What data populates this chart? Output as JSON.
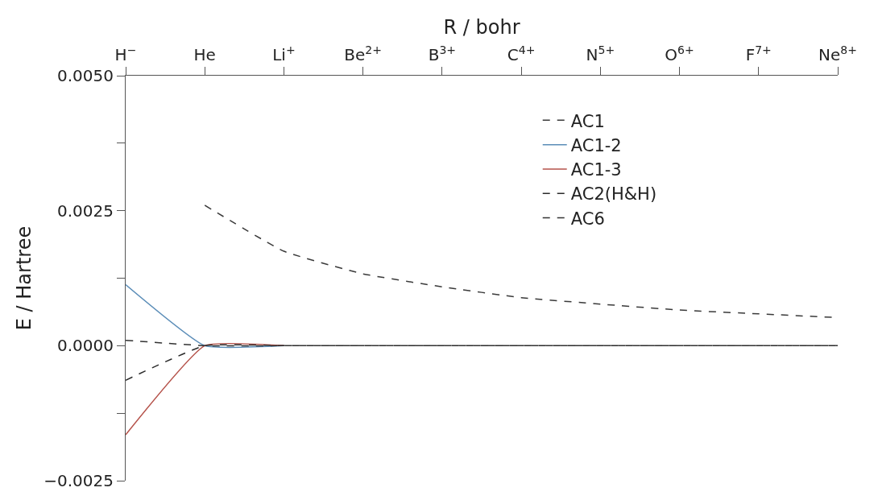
{
  "chart_data": {
    "type": "line",
    "xlabel": "R / bohr",
    "ylabel": "E / Hartree",
    "categories": [
      "H$^{−}$",
      "He",
      "Li$^{+}$",
      "Be$^{2+}$",
      "B$^{3+}$",
      "C$^{4+}$",
      "N$^{5+}$",
      "O$^{6+}$",
      "F$^{7+}$",
      "Ne$^{8+}$"
    ],
    "ylim": [
      -0.0025,
      0.005
    ],
    "yticks": [
      {
        "value": -0.0025,
        "label": "−0.0025"
      },
      {
        "value": -0.00125,
        "label": null
      },
      {
        "value": 0,
        "label": "0.0000"
      },
      {
        "value": 0.00125,
        "label": null
      },
      {
        "value": 0.0025,
        "label": "0.0025"
      },
      {
        "value": 0.00375,
        "label": null
      },
      {
        "value": 0.005,
        "label": "0.0050"
      }
    ],
    "legend": "top right",
    "marker": "none",
    "series": [
      {
        "name": "AC1",
        "color": "#3a3a3a",
        "line_style": "dashed",
        "values": [
          null,
          0.0026,
          0.00175,
          0.00133,
          0.00109,
          0.00089,
          0.00077,
          0.00066,
          0.00059,
          0.00052
        ]
      },
      {
        "name": "AC1-2",
        "color": "#5b8db8",
        "line_style": "solid",
        "values": [
          0.00113,
          0,
          0,
          null,
          null,
          null,
          null,
          null,
          null,
          null
        ]
      },
      {
        "name": "AC1-3",
        "color": "#b5524a",
        "line_style": "solid",
        "values": [
          -0.00165,
          0,
          0,
          null,
          null,
          null,
          null,
          null,
          null,
          null
        ]
      },
      {
        "name": "AC2(H&H)",
        "color": "#2b2b2b",
        "line_style": "dashed",
        "values": [
          -0.00064,
          0,
          0,
          0,
          0,
          0,
          0,
          0,
          0,
          0
        ]
      },
      {
        "name": "AC6",
        "color": "#333333",
        "line_style": "dashed",
        "values": [
          0.0001,
          0,
          0,
          0,
          0,
          0,
          0,
          0,
          0,
          0
        ]
      }
    ]
  }
}
